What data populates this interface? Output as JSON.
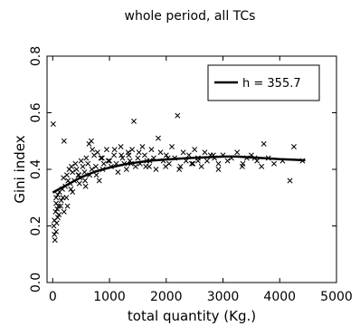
{
  "chart_data": {
    "type": "scatter",
    "title": "whole period, all TCs",
    "xlabel": "total quantity (Kg.)",
    "ylabel": "Gini index",
    "xlim": [
      -100,
      5000
    ],
    "ylim": [
      0.0,
      0.8
    ],
    "xticks": [
      0,
      1000,
      2000,
      3000,
      4000,
      5000
    ],
    "xtick_labels": [
      "0",
      "1000",
      "2000",
      "3000",
      "4000",
      "5000"
    ],
    "yticks": [
      0.0,
      0.2,
      0.4,
      0.6,
      0.8
    ],
    "ytick_labels": [
      "0.0",
      "0.2",
      "0.4",
      "0.6",
      "0.8"
    ],
    "grid": false,
    "legend_position": "top-right",
    "series": [
      {
        "name": "",
        "kind": "points",
        "marker": "x",
        "x": [
          10,
          20,
          30,
          40,
          50,
          60,
          70,
          80,
          90,
          100,
          120,
          150,
          170,
          190,
          200,
          220,
          250,
          270,
          290,
          310,
          330,
          350,
          380,
          400,
          420,
          450,
          480,
          500,
          530,
          560,
          590,
          620,
          650,
          680,
          700,
          730,
          760,
          790,
          820,
          850,
          880,
          900,
          950,
          1000,
          1030,
          1080,
          1120,
          1150,
          1200,
          1230,
          1260,
          1300,
          1330,
          1360,
          1400,
          1430,
          1460,
          1500,
          1540,
          1580,
          1620,
          1660,
          1700,
          1740,
          1780,
          1820,
          1860,
          1900,
          1950,
          2000,
          2050,
          2100,
          2150,
          2200,
          2250,
          2300,
          2350,
          2400,
          2450,
          2500,
          2560,
          2620,
          2680,
          2720,
          2780,
          2850,
          2920,
          3000,
          3080,
          3150,
          3250,
          3350,
          3420,
          3500,
          3600,
          3680,
          3720,
          3800,
          3900,
          4050,
          4180,
          4250,
          4400,
          30,
          60,
          110,
          180,
          260,
          320,
          470,
          580,
          690,
          770,
          980,
          1210,
          1380,
          1640,
          2030,
          2230,
          2470,
          2830,
          3340,
          3560,
          60,
          90,
          140,
          200,
          240,
          350,
          460,
          570,
          640,
          870,
          1090,
          1340,
          1520,
          1710,
          1990,
          2560,
          2920
        ],
        "y": [
          0.56,
          0.2,
          0.17,
          0.15,
          0.25,
          0.3,
          0.21,
          0.26,
          0.31,
          0.27,
          0.32,
          0.29,
          0.33,
          0.37,
          0.5,
          0.34,
          0.38,
          0.36,
          0.4,
          0.35,
          0.41,
          0.39,
          0.36,
          0.42,
          0.4,
          0.38,
          0.37,
          0.43,
          0.41,
          0.39,
          0.44,
          0.42,
          0.38,
          0.5,
          0.47,
          0.45,
          0.41,
          0.46,
          0.36,
          0.44,
          0.4,
          0.42,
          0.47,
          0.43,
          0.41,
          0.45,
          0.42,
          0.39,
          0.48,
          0.44,
          0.42,
          0.4,
          0.46,
          0.43,
          0.47,
          0.57,
          0.41,
          0.44,
          0.42,
          0.48,
          0.45,
          0.43,
          0.41,
          0.47,
          0.44,
          0.4,
          0.51,
          0.46,
          0.43,
          0.45,
          0.42,
          0.48,
          0.44,
          0.59,
          0.41,
          0.46,
          0.43,
          0.45,
          0.42,
          0.47,
          0.44,
          0.41,
          0.46,
          0.43,
          0.45,
          0.44,
          0.42,
          0.45,
          0.43,
          0.44,
          0.46,
          0.42,
          0.44,
          0.45,
          0.43,
          0.41,
          0.49,
          0.44,
          0.42,
          0.43,
          0.36,
          0.48,
          0.43,
          0.22,
          0.28,
          0.24,
          0.3,
          0.27,
          0.33,
          0.35,
          0.34,
          0.4,
          0.38,
          0.43,
          0.45,
          0.42,
          0.41,
          0.44,
          0.4,
          0.42,
          0.45,
          0.41,
          0.44,
          0.18,
          0.23,
          0.27,
          0.25,
          0.3,
          0.32,
          0.38,
          0.36,
          0.49,
          0.44,
          0.47,
          0.45,
          0.46,
          0.43,
          0.41,
          0.43,
          0.4
        ]
      },
      {
        "name": "h = 355.7",
        "kind": "line",
        "x": [
          0,
          250,
          500,
          750,
          1000,
          1250,
          1500,
          1750,
          2000,
          2250,
          2500,
          2750,
          3000,
          3250,
          3500,
          3750,
          4000,
          4250,
          4450
        ],
        "y": [
          0.318,
          0.345,
          0.372,
          0.392,
          0.406,
          0.417,
          0.425,
          0.431,
          0.435,
          0.438,
          0.441,
          0.443,
          0.445,
          0.445,
          0.442,
          0.439,
          0.436,
          0.434,
          0.432
        ]
      }
    ]
  }
}
